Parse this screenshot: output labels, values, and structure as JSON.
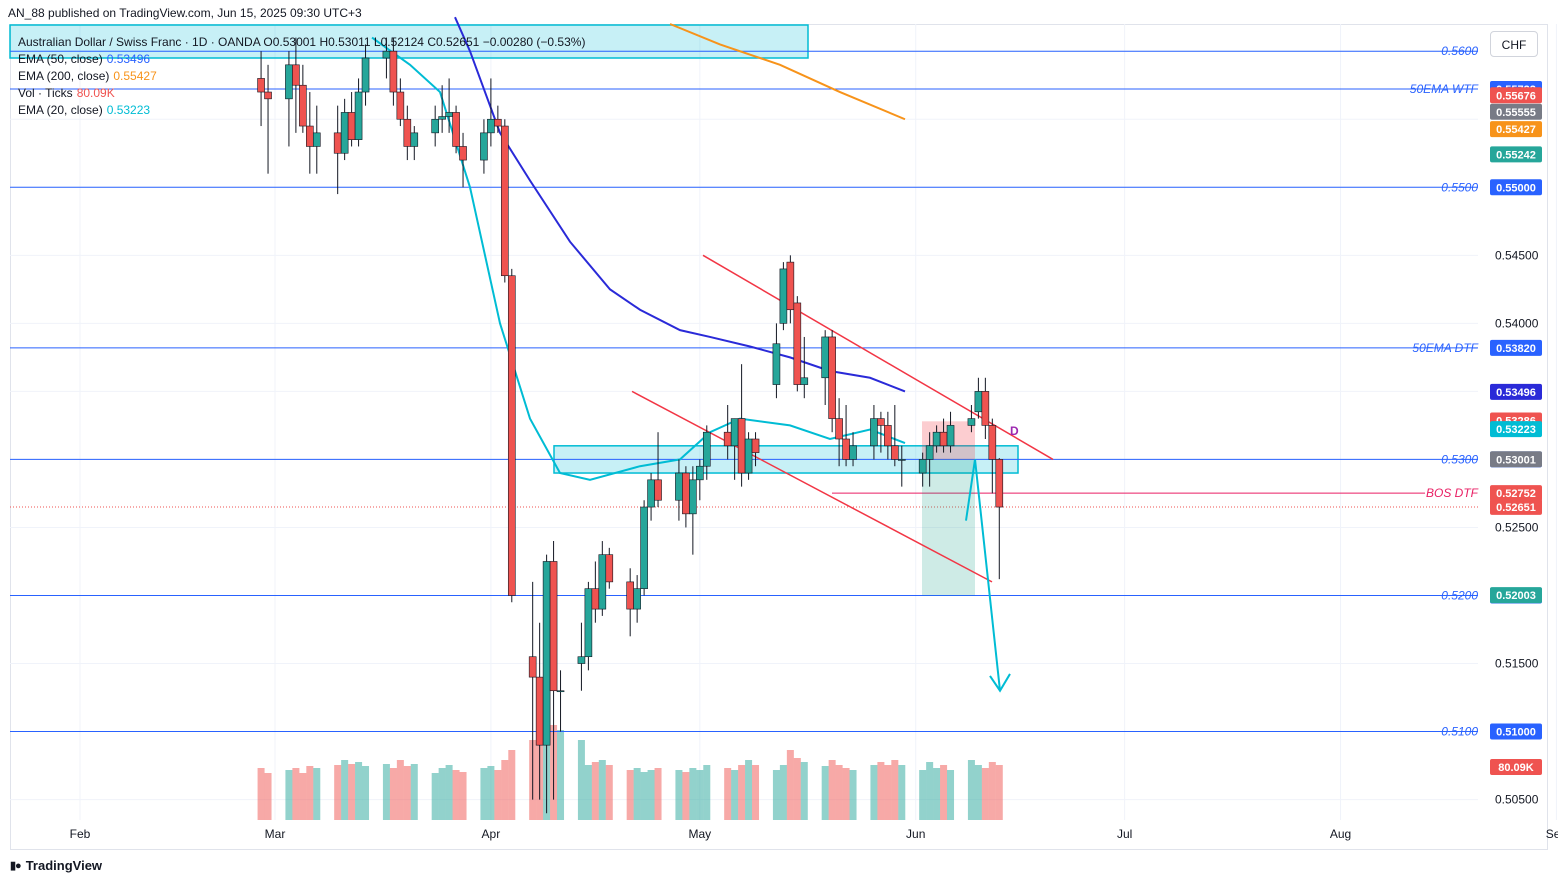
{
  "publisher": "AN_88 published on TradingView.com, Jun 15, 2025 09:30 UTC+3",
  "brand": "TradingView",
  "currency_button": "CHF",
  "legend": [
    {
      "label": "Australian Dollar / Swiss Franc · 1D · OANDA  O0.53001  H0.53011  L0.52124  C0.52651  −0.00280 (−0.53%)",
      "value": "",
      "color": "#131722"
    },
    {
      "label": "EMA (50, close)",
      "value": "0.53496",
      "color": "#2962ff"
    },
    {
      "label": "EMA (200, close)",
      "value": "0.55427",
      "color": "#f7931a"
    },
    {
      "label": "Vol · Ticks",
      "value": "80.09K",
      "color": "#ef5350"
    },
    {
      "label": "EMA (20, close)",
      "value": "0.53223",
      "color": "#00bcd4"
    }
  ],
  "colors": {
    "up": "#26a69a",
    "down": "#ef5350",
    "ema20": "#00bcd4",
    "ema50": "#2a2ad8",
    "ema200": "#f7931a",
    "level": "#2962ff",
    "channel": "#f23645",
    "zone": "#00bcd4",
    "arrow": "#00bcd4"
  },
  "chart_data": {
    "type": "candlestick",
    "symbol": "AUDCHF",
    "timeframe": "1D",
    "ylim": [
      0.5035,
      0.562
    ],
    "y_ticks": [
      "0.54500",
      "0.54000",
      "0.52500",
      "0.51500",
      "0.50500"
    ],
    "x_ticks": [
      {
        "label": "Feb",
        "date": "2025-02-01"
      },
      {
        "label": "Mar",
        "date": "2025-03-01"
      },
      {
        "label": "Apr",
        "date": "2025-04-01"
      },
      {
        "label": "May",
        "date": "2025-05-01"
      },
      {
        "label": "Jun",
        "date": "2025-06-01"
      },
      {
        "label": "Jul",
        "date": "2025-07-01"
      },
      {
        "label": "Aug",
        "date": "2025-08-01"
      },
      {
        "label": "Sep",
        "date": "2025-09-01"
      }
    ],
    "candles": [
      {
        "d": "2025-02-27",
        "o": 0.558,
        "h": 0.56,
        "l": 0.5545,
        "c": 0.557
      },
      {
        "d": "2025-02-28",
        "o": 0.557,
        "h": 0.559,
        "l": 0.551,
        "c": 0.5565
      },
      {
        "d": "2025-03-03",
        "o": 0.5565,
        "h": 0.56,
        "l": 0.553,
        "c": 0.559
      },
      {
        "d": "2025-03-04",
        "o": 0.559,
        "h": 0.561,
        "l": 0.554,
        "c": 0.5575
      },
      {
        "d": "2025-03-05",
        "o": 0.5575,
        "h": 0.559,
        "l": 0.554,
        "c": 0.5545
      },
      {
        "d": "2025-03-06",
        "o": 0.5545,
        "h": 0.557,
        "l": 0.551,
        "c": 0.553
      },
      {
        "d": "2025-03-07",
        "o": 0.553,
        "h": 0.556,
        "l": 0.551,
        "c": 0.554
      },
      {
        "d": "2025-03-10",
        "o": 0.554,
        "h": 0.556,
        "l": 0.5495,
        "c": 0.5525
      },
      {
        "d": "2025-03-11",
        "o": 0.5525,
        "h": 0.5565,
        "l": 0.552,
        "c": 0.5555
      },
      {
        "d": "2025-03-12",
        "o": 0.5555,
        "h": 0.557,
        "l": 0.553,
        "c": 0.5535
      },
      {
        "d": "2025-03-13",
        "o": 0.5535,
        "h": 0.558,
        "l": 0.553,
        "c": 0.557
      },
      {
        "d": "2025-03-14",
        "o": 0.557,
        "h": 0.5605,
        "l": 0.556,
        "c": 0.5595
      },
      {
        "d": "2025-03-17",
        "o": 0.5595,
        "h": 0.561,
        "l": 0.558,
        "c": 0.56
      },
      {
        "d": "2025-03-18",
        "o": 0.56,
        "h": 0.561,
        "l": 0.556,
        "c": 0.557
      },
      {
        "d": "2025-03-19",
        "o": 0.557,
        "h": 0.558,
        "l": 0.5545,
        "c": 0.555
      },
      {
        "d": "2025-03-20",
        "o": 0.555,
        "h": 0.556,
        "l": 0.552,
        "c": 0.553
      },
      {
        "d": "2025-03-21",
        "o": 0.553,
        "h": 0.5545,
        "l": 0.552,
        "c": 0.554
      },
      {
        "d": "2025-03-24",
        "o": 0.554,
        "h": 0.556,
        "l": 0.553,
        "c": 0.555
      },
      {
        "d": "2025-03-25",
        "o": 0.555,
        "h": 0.5575,
        "l": 0.554,
        "c": 0.5552
      },
      {
        "d": "2025-03-26",
        "o": 0.5552,
        "h": 0.558,
        "l": 0.554,
        "c": 0.5555
      },
      {
        "d": "2025-03-27",
        "o": 0.5555,
        "h": 0.556,
        "l": 0.5525,
        "c": 0.553
      },
      {
        "d": "2025-03-28",
        "o": 0.553,
        "h": 0.554,
        "l": 0.55,
        "c": 0.552
      },
      {
        "d": "2025-03-31",
        "o": 0.552,
        "h": 0.555,
        "l": 0.551,
        "c": 0.554
      },
      {
        "d": "2025-04-01",
        "o": 0.554,
        "h": 0.558,
        "l": 0.553,
        "c": 0.555
      },
      {
        "d": "2025-04-02",
        "o": 0.555,
        "h": 0.556,
        "l": 0.554,
        "c": 0.5545
      },
      {
        "d": "2025-04-03",
        "o": 0.5545,
        "h": 0.555,
        "l": 0.543,
        "c": 0.5435
      },
      {
        "d": "2025-04-04",
        "o": 0.5435,
        "h": 0.544,
        "l": 0.5195,
        "c": 0.52
      },
      {
        "d": "2025-04-07",
        "o": 0.5155,
        "h": 0.521,
        "l": 0.505,
        "c": 0.514
      },
      {
        "d": "2025-04-08",
        "o": 0.514,
        "h": 0.518,
        "l": 0.505,
        "c": 0.509
      },
      {
        "d": "2025-04-09",
        "o": 0.509,
        "h": 0.523,
        "l": 0.504,
        "c": 0.5225
      },
      {
        "d": "2025-04-10",
        "o": 0.5225,
        "h": 0.524,
        "l": 0.505,
        "c": 0.513
      },
      {
        "d": "2025-04-11",
        "o": 0.513,
        "h": 0.5145,
        "l": 0.51,
        "c": 0.513
      },
      {
        "d": "2025-04-14",
        "o": 0.515,
        "h": 0.518,
        "l": 0.513,
        "c": 0.5155
      },
      {
        "d": "2025-04-15",
        "o": 0.5155,
        "h": 0.521,
        "l": 0.5145,
        "c": 0.5205
      },
      {
        "d": "2025-04-16",
        "o": 0.5205,
        "h": 0.5225,
        "l": 0.518,
        "c": 0.519
      },
      {
        "d": "2025-04-17",
        "o": 0.519,
        "h": 0.524,
        "l": 0.5185,
        "c": 0.523
      },
      {
        "d": "2025-04-18",
        "o": 0.523,
        "h": 0.5235,
        "l": 0.5205,
        "c": 0.521
      },
      {
        "d": "2025-04-21",
        "o": 0.521,
        "h": 0.522,
        "l": 0.517,
        "c": 0.519
      },
      {
        "d": "2025-04-22",
        "o": 0.519,
        "h": 0.5215,
        "l": 0.518,
        "c": 0.5205
      },
      {
        "d": "2025-04-23",
        "o": 0.5205,
        "h": 0.527,
        "l": 0.52,
        "c": 0.5265
      },
      {
        "d": "2025-04-24",
        "o": 0.5265,
        "h": 0.529,
        "l": 0.5255,
        "c": 0.5285
      },
      {
        "d": "2025-04-25",
        "o": 0.5285,
        "h": 0.532,
        "l": 0.5265,
        "c": 0.527
      },
      {
        "d": "2025-04-28",
        "o": 0.527,
        "h": 0.53,
        "l": 0.5255,
        "c": 0.529
      },
      {
        "d": "2025-04-29",
        "o": 0.529,
        "h": 0.5295,
        "l": 0.525,
        "c": 0.526
      },
      {
        "d": "2025-04-30",
        "o": 0.526,
        "h": 0.5295,
        "l": 0.523,
        "c": 0.5285
      },
      {
        "d": "2025-05-01",
        "o": 0.5285,
        "h": 0.53,
        "l": 0.527,
        "c": 0.5295
      },
      {
        "d": "2025-05-02",
        "o": 0.5295,
        "h": 0.5325,
        "l": 0.5285,
        "c": 0.532
      },
      {
        "d": "2025-05-05",
        "o": 0.532,
        "h": 0.534,
        "l": 0.53,
        "c": 0.531
      },
      {
        "d": "2025-05-06",
        "o": 0.531,
        "h": 0.533,
        "l": 0.5285,
        "c": 0.533
      },
      {
        "d": "2025-05-07",
        "o": 0.533,
        "h": 0.537,
        "l": 0.528,
        "c": 0.529
      },
      {
        "d": "2025-05-08",
        "o": 0.529,
        "h": 0.532,
        "l": 0.5285,
        "c": 0.5315
      },
      {
        "d": "2025-05-09",
        "o": 0.5315,
        "h": 0.532,
        "l": 0.5295,
        "c": 0.5305
      },
      {
        "d": "2025-05-12",
        "o": 0.5355,
        "h": 0.54,
        "l": 0.5345,
        "c": 0.5385
      },
      {
        "d": "2025-05-13",
        "o": 0.54,
        "h": 0.5445,
        "l": 0.5395,
        "c": 0.544
      },
      {
        "d": "2025-05-14",
        "o": 0.5445,
        "h": 0.545,
        "l": 0.54,
        "c": 0.541
      },
      {
        "d": "2025-05-15",
        "o": 0.5415,
        "h": 0.542,
        "l": 0.535,
        "c": 0.5355
      },
      {
        "d": "2025-05-16",
        "o": 0.5355,
        "h": 0.539,
        "l": 0.5345,
        "c": 0.536
      },
      {
        "d": "2025-05-19",
        "o": 0.536,
        "h": 0.5395,
        "l": 0.534,
        "c": 0.539
      },
      {
        "d": "2025-05-20",
        "o": 0.539,
        "h": 0.5395,
        "l": 0.532,
        "c": 0.533
      },
      {
        "d": "2025-05-21",
        "o": 0.533,
        "h": 0.5345,
        "l": 0.5295,
        "c": 0.5315
      },
      {
        "d": "2025-05-22",
        "o": 0.5315,
        "h": 0.534,
        "l": 0.5295,
        "c": 0.53
      },
      {
        "d": "2025-05-23",
        "o": 0.53,
        "h": 0.532,
        "l": 0.5295,
        "c": 0.531
      },
      {
        "d": "2025-05-26",
        "o": 0.531,
        "h": 0.534,
        "l": 0.53,
        "c": 0.533
      },
      {
        "d": "2025-05-27",
        "o": 0.533,
        "h": 0.5335,
        "l": 0.5305,
        "c": 0.5325
      },
      {
        "d": "2025-05-28",
        "o": 0.5325,
        "h": 0.5335,
        "l": 0.53,
        "c": 0.531
      },
      {
        "d": "2025-05-29",
        "o": 0.531,
        "h": 0.534,
        "l": 0.5295,
        "c": 0.53
      },
      {
        "d": "2025-05-30",
        "o": 0.53,
        "h": 0.531,
        "l": 0.528,
        "c": 0.53
      },
      {
        "d": "2025-06-02",
        "o": 0.529,
        "h": 0.5305,
        "l": 0.528,
        "c": 0.53
      },
      {
        "d": "2025-06-03",
        "o": 0.53,
        "h": 0.532,
        "l": 0.528,
        "c": 0.531
      },
      {
        "d": "2025-06-04",
        "o": 0.531,
        "h": 0.5325,
        "l": 0.5305,
        "c": 0.532
      },
      {
        "d": "2025-06-05",
        "o": 0.532,
        "h": 0.533,
        "l": 0.5305,
        "c": 0.531
      },
      {
        "d": "2025-06-06",
        "o": 0.531,
        "h": 0.5335,
        "l": 0.5305,
        "c": 0.5325
      },
      {
        "d": "2025-06-09",
        "o": 0.5325,
        "h": 0.534,
        "l": 0.532,
        "c": 0.533
      },
      {
        "d": "2025-06-10",
        "o": 0.5335,
        "h": 0.536,
        "l": 0.533,
        "c": 0.535
      },
      {
        "d": "2025-06-11",
        "o": 0.535,
        "h": 0.536,
        "l": 0.5315,
        "c": 0.5325
      },
      {
        "d": "2025-06-12",
        "o": 0.5325,
        "h": 0.533,
        "l": 0.5275,
        "c": 0.53
      },
      {
        "d": "2025-06-13",
        "o": 0.53,
        "h": 0.5301,
        "l": 0.5212,
        "c": 0.5265
      }
    ],
    "volume_heights": [
      0.52,
      0.47,
      0.5,
      0.52,
      0.47,
      0.54,
      0.52,
      0.55,
      0.6,
      0.56,
      0.58,
      0.54,
      0.56,
      0.52,
      0.6,
      0.54,
      0.56,
      0.47,
      0.52,
      0.55,
      0.5,
      0.48,
      0.52,
      0.54,
      0.5,
      0.6,
      0.7,
      0.8,
      0.9,
      1.0,
      0.95,
      0.9,
      0.8,
      0.55,
      0.58,
      0.6,
      0.55,
      0.5,
      0.52,
      0.48,
      0.5,
      0.52,
      0.5,
      0.48,
      0.52,
      0.5,
      0.55,
      0.52,
      0.5,
      0.55,
      0.6,
      0.55,
      0.5,
      0.55,
      0.7,
      0.62,
      0.58,
      0.54,
      0.6,
      0.55,
      0.52,
      0.5,
      0.55,
      0.58,
      0.55,
      0.6,
      0.55,
      0.5,
      0.58,
      0.52,
      0.55,
      0.5,
      0.6,
      0.55,
      0.52,
      0.58,
      0.55,
      0.6,
      0.62
    ],
    "ema20": [
      [
        0.559,
        0.5575
      ],
      [
        0.557,
        0.556
      ],
      [
        0.5535,
        0.5545
      ],
      [
        0.549,
        0.553
      ],
      [
        0.54,
        0.546
      ],
      [
        0.523,
        0.533
      ],
      [
        0.518,
        0.531
      ],
      [
        0.528,
        0.529
      ],
      [
        0.533,
        0.528
      ],
      [
        0.537,
        0.529
      ],
      [
        0.539,
        0.5285
      ],
      [
        0.542,
        0.531
      ],
      [
        0.5445,
        0.532
      ]
    ],
    "ema50_value": 0.53496,
    "ema200_value": 0.55427,
    "levels": [
      {
        "price": 0.56,
        "label": "0.5600",
        "tag": "",
        "tag_color": ""
      },
      {
        "price": 0.55722,
        "label": "50EMA WTF",
        "tag": "0.55722",
        "tag_color": "#2962ff"
      },
      {
        "price": 0.55,
        "label": "0.5500",
        "tag": "0.55000",
        "tag_color": "#2962ff"
      },
      {
        "price": 0.5382,
        "label": "50EMA DTF",
        "tag": "0.53820",
        "tag_color": "#2962ff"
      },
      {
        "price": 0.53,
        "label": "0.5300",
        "tag": "0.53000",
        "tag_color": "#2962ff"
      },
      {
        "price": 0.52,
        "label": "0.5200",
        "tag": "0.52000",
        "tag_color": "#2962ff"
      },
      {
        "price": 0.51,
        "label": "0.5100",
        "tag": "0.51000",
        "tag_color": "#2962ff"
      }
    ],
    "bos": {
      "price": 0.52752,
      "label": "BOS DTF",
      "tag": "0.52752"
    },
    "price_tags": [
      {
        "value": "0.55676",
        "color": "#ef5350"
      },
      {
        "value": "0.55555",
        "color": "#787b86"
      },
      {
        "value": "0.55427",
        "color": "#f7931a"
      },
      {
        "value": "0.55242",
        "color": "#26a69a"
      },
      {
        "value": "0.53496",
        "color": "#2a2ad8"
      },
      {
        "value": "0.53286",
        "color": "#ef5350"
      },
      {
        "value": "0.53223",
        "color": "#00bcd4"
      },
      {
        "value": "0.53001",
        "color": "#787b86"
      },
      {
        "value": "0.52651",
        "color": "#ef5350"
      },
      {
        "value": "0.52003",
        "color": "#26a69a"
      }
    ],
    "volume_tag": "80.09K",
    "annotation": "D"
  }
}
